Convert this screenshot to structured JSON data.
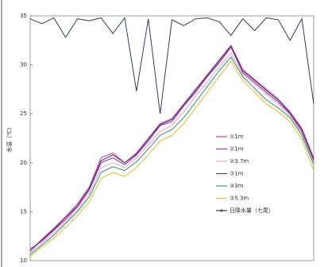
{
  "chart_data": {
    "type": "line",
    "y_label": "水温（℃）",
    "categories": [
      null,
      null,
      null,
      null,
      null,
      null,
      null,
      null,
      null,
      null,
      null,
      null,
      null,
      null,
      null,
      null,
      null,
      null,
      null,
      null,
      null,
      null,
      null,
      null,
      null
    ],
    "ylim": [
      10,
      35
    ],
    "yticks": [
      10,
      15,
      20,
      25,
      30,
      35
    ],
    "y2lim": [
      0,
      250
    ],
    "y2_inverted": true,
    "legend": "center-right",
    "series": [
      {
        "name": "①1m",
        "color": "#d63fa6",
        "values": [
          11,
          12.2,
          13.3,
          14.5,
          15.8,
          17.5,
          20.5,
          21,
          20,
          21,
          22.5,
          24,
          24.5,
          26,
          27.5,
          29,
          30.5,
          32,
          29.5,
          28.5,
          27.5,
          26.5,
          25.2,
          23.5,
          20.5
        ]
      },
      {
        "name": "②1m",
        "color": "#8e3a9e",
        "values": [
          11.2,
          12,
          13.1,
          14.2,
          15.5,
          17.2,
          20,
          20.5,
          19.8,
          20.8,
          22.2,
          23.8,
          24.2,
          25.8,
          27.2,
          28.8,
          30.2,
          31.8,
          29.2,
          28.2,
          27.2,
          26.2,
          25,
          23.2,
          20.2
        ]
      },
      {
        "name": "②3.7m",
        "color": "#e8a6cf",
        "values": [
          10.8,
          11.8,
          12.8,
          14,
          15.2,
          16.8,
          19.5,
          20,
          19.5,
          20.5,
          21.8,
          23.2,
          23.8,
          25.2,
          26.8,
          28.2,
          29.8,
          31.2,
          29,
          28,
          27,
          26,
          24.8,
          23,
          20
        ]
      },
      {
        "name": "③1m",
        "color": "#5a3d85",
        "values": [
          11,
          12.1,
          13.2,
          14.4,
          15.6,
          17.4,
          20.2,
          20.8,
          20,
          20.9,
          22.4,
          23.9,
          24.4,
          25.9,
          27.4,
          28.9,
          30.4,
          31.9,
          29.4,
          28.4,
          27.4,
          26.4,
          25.1,
          23.4,
          20.4
        ]
      },
      {
        "name": "③3m",
        "color": "#3aa07a",
        "values": [
          10.6,
          11.6,
          12.6,
          13.8,
          15,
          16.5,
          19,
          19.6,
          19.2,
          20.1,
          21.4,
          22.8,
          23.4,
          24.6,
          26.2,
          27.8,
          29.4,
          30.8,
          28.8,
          27.6,
          26.4,
          25.6,
          24.6,
          22.8,
          19.8
        ]
      },
      {
        "name": "③5.3m",
        "color": "#e3c33c",
        "values": [
          10.4,
          11.4,
          12.3,
          13.4,
          14.6,
          16,
          18.4,
          19,
          18.6,
          19.5,
          20.8,
          22.2,
          22.8,
          24,
          25.6,
          27.2,
          28.8,
          30.4,
          28.4,
          27.2,
          26,
          25.2,
          24.2,
          22.4,
          19.2
        ]
      },
      {
        "name": "日降水量（七尾）",
        "color": "#2f3d5c",
        "axis": "y2",
        "values": [
          3,
          8,
          2,
          22,
          3,
          5,
          2,
          18,
          2,
          77,
          3,
          100,
          4,
          10,
          3,
          2,
          6,
          20,
          3,
          15,
          2,
          4,
          25,
          3,
          90
        ]
      }
    ]
  }
}
